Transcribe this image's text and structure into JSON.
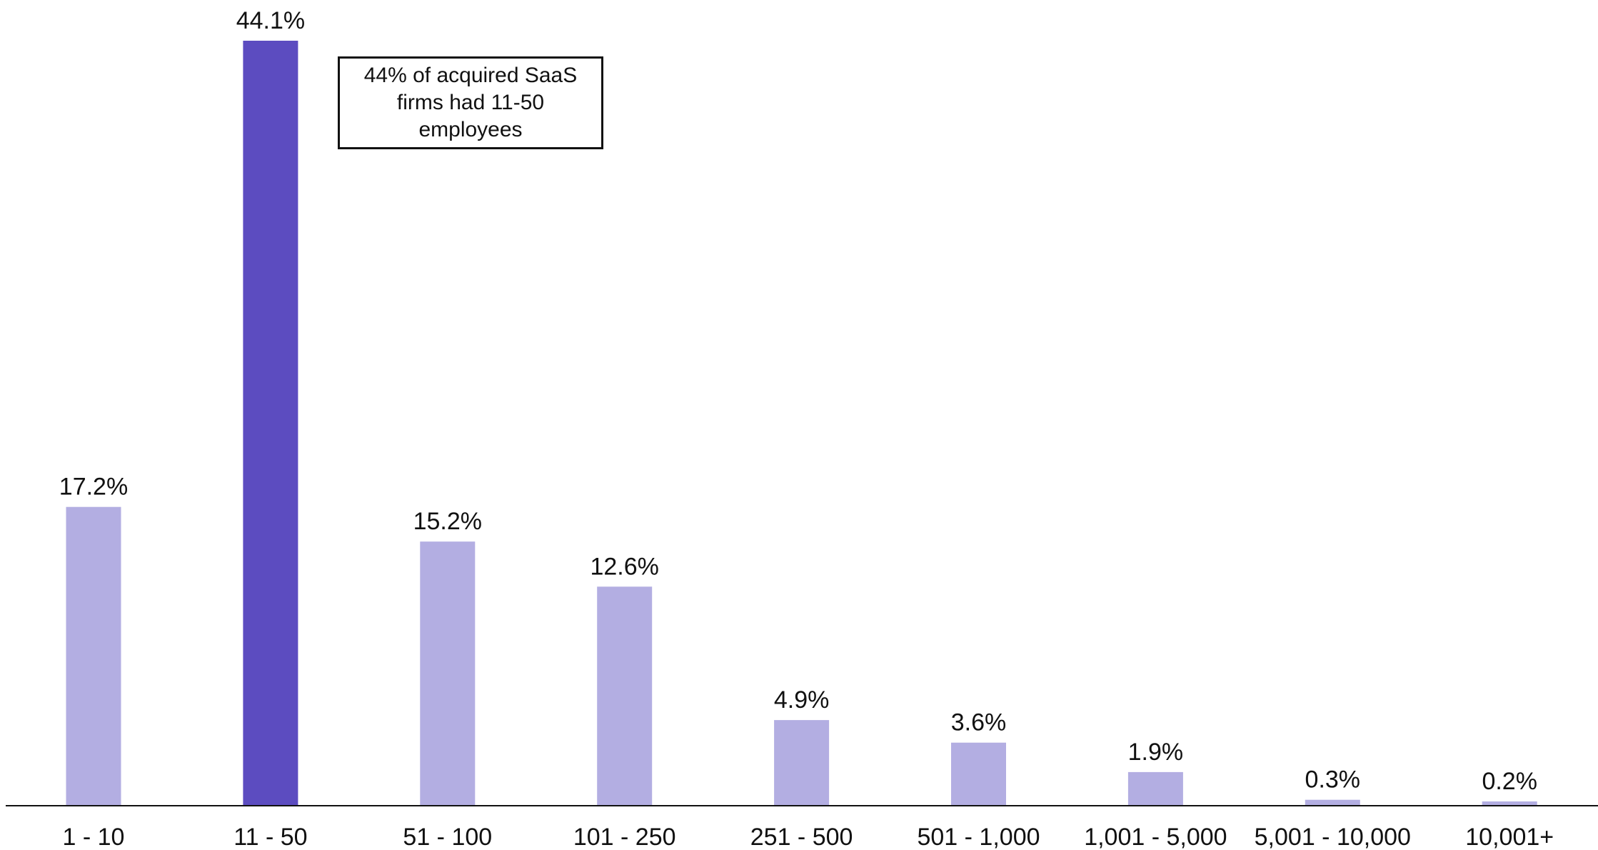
{
  "chart_data": {
    "type": "bar",
    "categories": [
      "1 - 10",
      "11 - 50",
      "51 - 100",
      "101 - 250",
      "251 - 500",
      "501 - 1,000",
      "1,001 - 5,000",
      "5,001 - 10,000",
      "10,001+"
    ],
    "values": [
      17.2,
      44.1,
      15.2,
      12.6,
      4.9,
      3.6,
      1.9,
      0.3,
      0.2
    ],
    "value_labels": [
      "17.2%",
      "44.1%",
      "15.2%",
      "12.6%",
      "4.9%",
      "3.6%",
      "1.9%",
      "0.3%",
      "0.2%"
    ],
    "highlighted_category": "11 - 50",
    "ylim": [
      0,
      44.1
    ],
    "grid": false,
    "colors": {
      "bar": "#b3aee2",
      "highlight": "#5c4cc0",
      "axis": "#111111"
    },
    "annotation": "44% of acquired SaaS firms had 11-50 employees"
  }
}
